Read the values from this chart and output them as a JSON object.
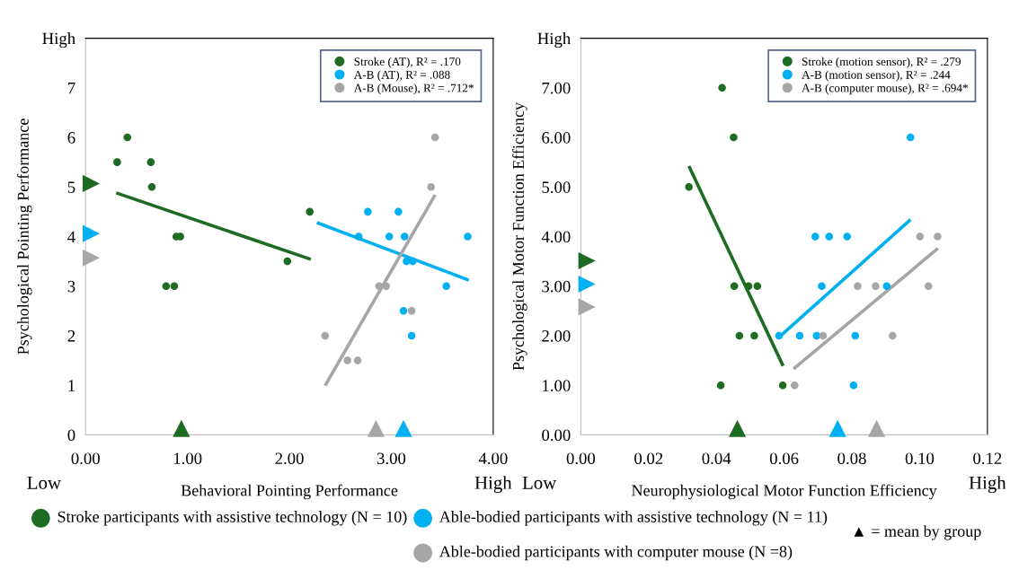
{
  "chart_data": [
    {
      "type": "scatter",
      "xlabel": "Behavioral Pointing Performance",
      "ylabel": "Psychological Pointing Performance",
      "xlim": [
        0,
        4
      ],
      "xticks": [
        {
          "value": 0,
          "label": "0.00"
        },
        {
          "value": 1,
          "label": "1.00"
        },
        {
          "value": 2,
          "label": "2.00"
        },
        {
          "value": 3,
          "label": "3.00"
        },
        {
          "value": 4,
          "label": "4.00"
        }
      ],
      "ylim": [
        0,
        8
      ],
      "yticks": [
        0,
        1,
        2,
        3,
        4,
        5,
        6,
        7,
        {
          "value": 8,
          "label": "High"
        }
      ],
      "grid": false,
      "legend": "top right",
      "marker": "circle",
      "annotations": [
        "Low",
        "High",
        "Stroke participants with assistive technology (N = 10)",
        "Able-bodied participants with assistive technology (N = 11)",
        "Able-bodied participants with computer mouse (N =8)",
        "▲ = mean by group"
      ],
      "series": [
        {
          "name": "Stroke (AT), R² = .170",
          "color": "#1e6b23",
          "x": [
            0.31,
            0.41,
            0.64,
            0.65,
            0.89,
            0.93,
            0.79,
            0.87,
            2.2,
            1.98
          ],
          "values": [
            5.5,
            6,
            5.5,
            5,
            4,
            4,
            3,
            3,
            4.5,
            3.5
          ]
        },
        {
          "name": "A-B (AT), R² = .088",
          "color": "#00b0f0",
          "x": [
            2.77,
            3.07,
            2.68,
            2.98,
            3.13,
            3.75,
            3.15,
            3.21,
            3.54,
            3.12,
            3.2
          ],
          "values": [
            4.5,
            4.5,
            4,
            4,
            4,
            4,
            3.5,
            3.5,
            3,
            2.5,
            2
          ]
        },
        {
          "name": "A-B (Mouse), R² = .712*",
          "color": "#a6a6a6",
          "x": [
            3.43,
            3.39,
            2.88,
            2.95,
            3.2,
            2.35,
            2.57,
            2.67
          ],
          "values": [
            6,
            5,
            3,
            3,
            2.5,
            2,
            1.5,
            1.5
          ]
        },
        {
          "type": "line",
          "marker": "none",
          "color": "#1e6b23",
          "x": [
            0.3,
            2.21
          ],
          "values": [
            4.88,
            3.54
          ]
        },
        {
          "type": "line",
          "marker": "none",
          "color": "#00b0f0",
          "x": [
            2.27,
            3.76
          ],
          "values": [
            4.28,
            3.12
          ]
        },
        {
          "type": "line",
          "marker": "none",
          "color": "#a6a6a6",
          "x": [
            2.35,
            3.43
          ],
          "values": [
            0.99,
            4.84
          ]
        },
        {
          "marker": "triangle",
          "color": "#1e6b23",
          "x": [
            0.94,
            0.055
          ],
          "values": [
            0.13,
            5.07
          ]
        },
        {
          "marker": "triangle",
          "color": "#00b0f0",
          "x": [
            3.12,
            0.055
          ],
          "values": [
            0.13,
            4.06
          ]
        },
        {
          "marker": "triangle",
          "color": "#a6a6a6",
          "x": [
            2.85,
            0.055
          ],
          "values": [
            0.13,
            3.57
          ]
        }
      ]
    },
    {
      "type": "scatter",
      "xlabel": "Neurophysiological Motor Function Efficiency",
      "ylabel": "Psychological Motor Function Efficiency",
      "xlim": [
        0,
        0.12
      ],
      "xticks": [
        {
          "value": 0,
          "label": "0.00"
        },
        0.02,
        0.04,
        0.06,
        0.08,
        {
          "value": 0.1,
          "label": "0.10"
        },
        0.12
      ],
      "ylim": [
        0,
        8
      ],
      "yticks": [
        {
          "value": 0,
          "label": "0.00"
        },
        {
          "value": 1,
          "label": "1.00"
        },
        {
          "value": 2,
          "label": "2.00"
        },
        {
          "value": 3,
          "label": "3.00"
        },
        {
          "value": 4,
          "label": "4.00"
        },
        {
          "value": 5,
          "label": "5.00"
        },
        {
          "value": 6,
          "label": "6.00"
        },
        {
          "value": 7,
          "label": "7.00"
        },
        {
          "value": 8,
          "label": "High"
        }
      ],
      "grid": false,
      "legend": "top right",
      "marker": "circle",
      "annotations": [
        "Low",
        "High"
      ],
      "series": [
        {
          "name": "Stroke (motion sensor), R² = .279",
          "color": "#1e6b23",
          "x": [
            0.0417,
            0.0451,
            0.0319,
            0.0453,
            0.0495,
            0.0521,
            0.0468,
            0.0512,
            0.0413,
            0.0596
          ],
          "values": [
            7,
            6,
            5,
            3,
            3,
            3,
            2,
            2,
            1,
            1
          ]
        },
        {
          "name": "A-B (motion sensor), R² = .244",
          "color": "#00b0f0",
          "x": [
            0.0973,
            0.0692,
            0.0733,
            0.0786,
            0.0711,
            0.0903,
            0.0585,
            0.0646,
            0.0696,
            0.081,
            0.0805
          ],
          "values": [
            6,
            4,
            4,
            4,
            3,
            3,
            2,
            2,
            2,
            2,
            1
          ]
        },
        {
          "name": "A-B (computer mouse), R² = .694*",
          "color": "#a6a6a6",
          "x": [
            0.1001,
            0.1053,
            0.0817,
            0.087,
            0.1026,
            0.0715,
            0.092,
            0.0631
          ],
          "values": [
            4,
            4,
            3,
            3,
            3,
            2,
            2,
            1
          ]
        },
        {
          "type": "line",
          "marker": "none",
          "color": "#1e6b23",
          "x": [
            0.0319,
            0.0597
          ],
          "values": [
            5.42,
            1.39
          ]
        },
        {
          "type": "line",
          "marker": "none",
          "color": "#00b0f0",
          "x": [
            0.0585,
            0.0973
          ],
          "values": [
            1.97,
            4.34
          ]
        },
        {
          "type": "line",
          "marker": "none",
          "color": "#a6a6a6",
          "x": [
            0.0628,
            0.1054
          ],
          "values": [
            1.33,
            3.76
          ]
        },
        {
          "marker": "triangle",
          "color": "#1e6b23",
          "x": [
            0.0462,
            0.0018
          ],
          "values": [
            0.13,
            3.51
          ]
        },
        {
          "marker": "triangle",
          "color": "#00b0f0",
          "x": [
            0.0758,
            0.0018
          ],
          "values": [
            0.13,
            3.04
          ]
        },
        {
          "marker": "triangle",
          "color": "#a6a6a6",
          "x": [
            0.0873,
            0.0018
          ],
          "values": [
            0.13,
            2.58
          ]
        }
      ]
    }
  ]
}
